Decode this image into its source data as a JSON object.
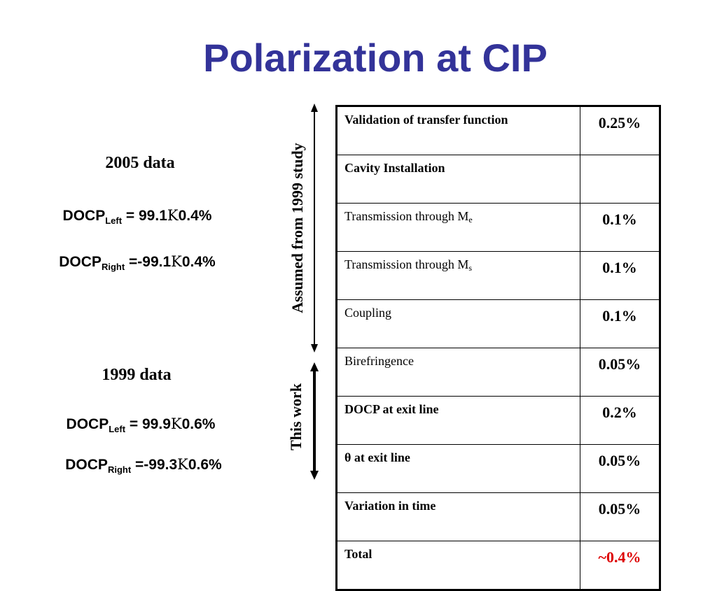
{
  "title": "Polarization at CIP",
  "left": {
    "data2005": {
      "heading": "2005 data",
      "left_prefix": "DOCP",
      "left_sub": "Left",
      "left_value": " = 99.1",
      "pm": "Κ",
      "left_err": "0.4%",
      "right_prefix": "DOCP",
      "right_sub": "Right",
      "right_value": " =-99.1",
      "right_err": "0.4%"
    },
    "data1999": {
      "heading": "1999 data",
      "left_prefix": "DOCP",
      "left_sub": "Left",
      "left_value": " = 99.9",
      "pm": "Κ",
      "left_err": "0.6%",
      "right_prefix": "DOCP",
      "right_sub": "Right",
      "right_value": " =-99.3",
      "right_err": "0.6%"
    }
  },
  "side_labels": {
    "assumed": "Assumed from 1999 study",
    "this_work": "This work"
  },
  "table": {
    "rows": [
      {
        "label": "Validation of transfer function",
        "sub": "",
        "value": "0.25%",
        "bold_label": true,
        "red": false
      },
      {
        "label": "Cavity Installation",
        "sub": "",
        "value": "",
        "bold_label": true,
        "red": false
      },
      {
        "label": "Transmission through M",
        "sub": "e",
        "value": "0.1%",
        "bold_label": false,
        "red": false
      },
      {
        "label": "Transmission through M",
        "sub": "s",
        "value": "0.1%",
        "bold_label": false,
        "red": false
      },
      {
        "label": "Coupling",
        "sub": "",
        "value": "0.1%",
        "bold_label": false,
        "red": false
      },
      {
        "label": "Birefringence",
        "sub": "",
        "value": "0.05%",
        "bold_label": false,
        "red": false
      },
      {
        "label": "DOCP at exit line",
        "sub": "",
        "value": "0.2%",
        "bold_label": true,
        "red": false
      },
      {
        "label": "θ at exit line",
        "sub": "",
        "value": "0.05%",
        "bold_label": true,
        "red": false
      },
      {
        "label": "Variation in time",
        "sub": "",
        "value": "0.05%",
        "bold_label": true,
        "red": false
      },
      {
        "label": "Total",
        "sub": "",
        "value": "~0.4%",
        "bold_label": true,
        "red": true
      }
    ]
  },
  "colors": {
    "title": "#333399",
    "total": "#dd0000"
  }
}
